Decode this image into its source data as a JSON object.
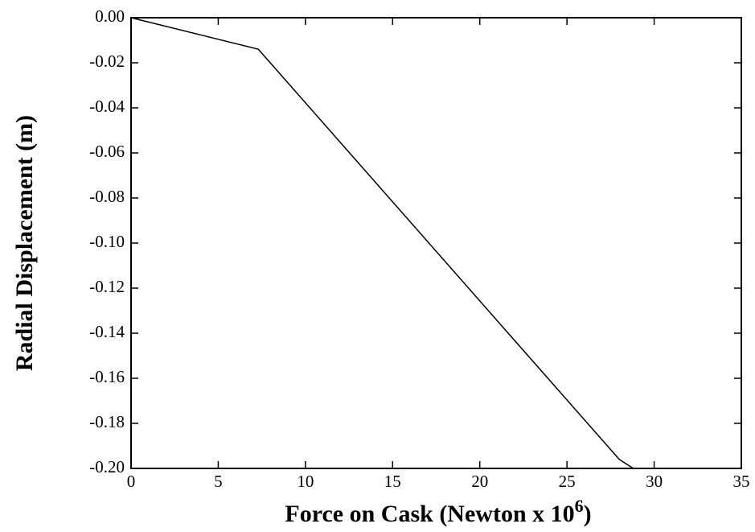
{
  "chart_data": {
    "type": "line",
    "x_label": {
      "text": "Force on Cask (Newton x 10",
      "superscript": "6",
      "suffix": ")"
    },
    "y_label": "Radial Displacement (m)",
    "x": [
      0,
      7.3,
      28,
      28.8
    ],
    "series": [
      {
        "color": "#000000",
        "values": [
          0,
          -0.014,
          -0.196,
          -0.2
        ]
      }
    ],
    "xlim": [
      0,
      35
    ],
    "xticks": [
      0,
      5,
      10,
      15,
      20,
      25,
      30,
      35
    ],
    "ylim": [
      -0.2,
      0
    ],
    "yticks": [
      {
        "value": 0,
        "label": "0.00"
      },
      -0.02,
      -0.04,
      -0.06,
      -0.08,
      {
        "value": -0.1,
        "label": "-0.10"
      },
      -0.12,
      -0.14,
      -0.16,
      -0.18,
      {
        "value": -0.2,
        "label": "-0.20"
      }
    ]
  }
}
